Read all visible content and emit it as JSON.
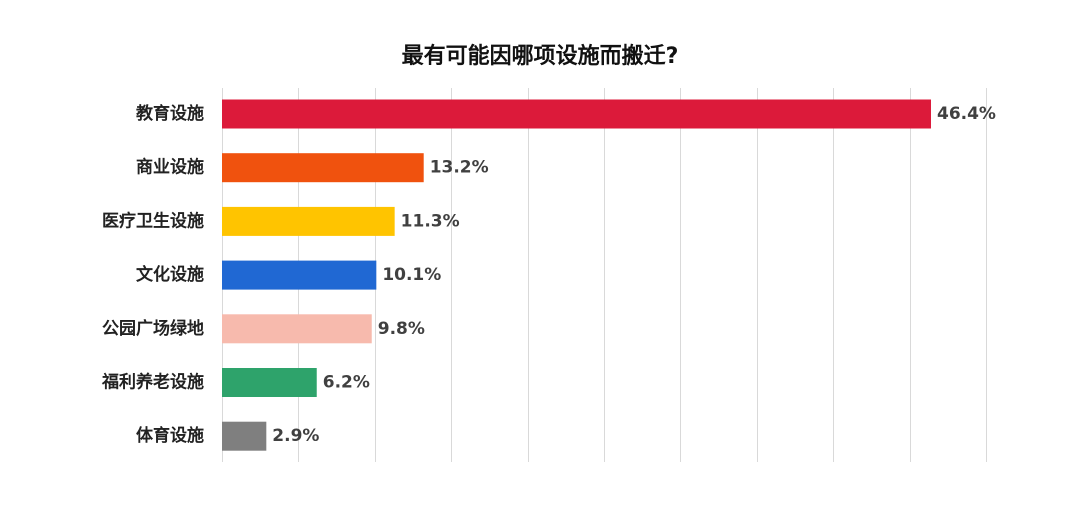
{
  "chart_data": {
    "type": "bar",
    "orientation": "horizontal",
    "title": "最有可能因哪项设施而搬迁?",
    "xlabel": "",
    "ylabel": "",
    "categories": [
      "教育设施",
      "商业设施",
      "医疗卫生设施",
      "文化设施",
      "公园广场绿地",
      "福利养老设施",
      "体育设施"
    ],
    "values": [
      46.4,
      13.2,
      11.3,
      10.1,
      9.8,
      6.2,
      2.9
    ],
    "value_labels": [
      "46.4%",
      "13.2%",
      "11.3%",
      "10.1%",
      "9.8%",
      "6.2%",
      "2.9%"
    ],
    "colors": [
      "#DC1A3A",
      "#F0520E",
      "#FFC400",
      "#2068D3",
      "#F7BAAD",
      "#2EA36B",
      "#7F7F7F"
    ],
    "xlim": [
      0,
      50
    ],
    "grid": true,
    "legend": "none"
  }
}
